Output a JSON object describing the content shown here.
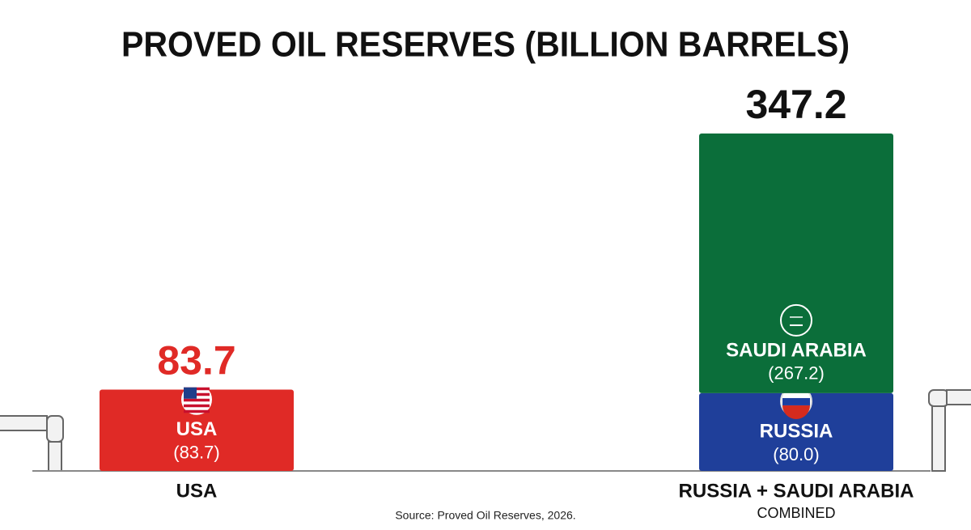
{
  "chart_data": {
    "type": "stacked_bar",
    "title": "PROVED OIL RESERVES (BILLION BARRELS)",
    "categories": [
      "USA",
      "RUSSIA + SAUDI ARABIA"
    ],
    "category_notes": [
      null,
      "COMBINED"
    ],
    "series": [
      {
        "name": "USA",
        "color": "#e02a26",
        "values": [
          83.7,
          null
        ],
        "value_labels": [
          "(83.7)",
          null
        ]
      },
      {
        "name": "RUSSIA",
        "color": "#1f3f9a",
        "values": [
          null,
          80.0
        ],
        "value_labels": [
          null,
          "(80.0)"
        ]
      },
      {
        "name": "SAUDI ARABIA",
        "color": "#0b6e3a",
        "values": [
          null,
          267.2
        ],
        "value_labels": [
          null,
          "(267.2)"
        ]
      }
    ],
    "totals": [
      83.7,
      347.2
    ],
    "total_colors": [
      "#e02a26",
      "#111111"
    ],
    "source": "Source: Proved Oil Reserves, 2026."
  }
}
